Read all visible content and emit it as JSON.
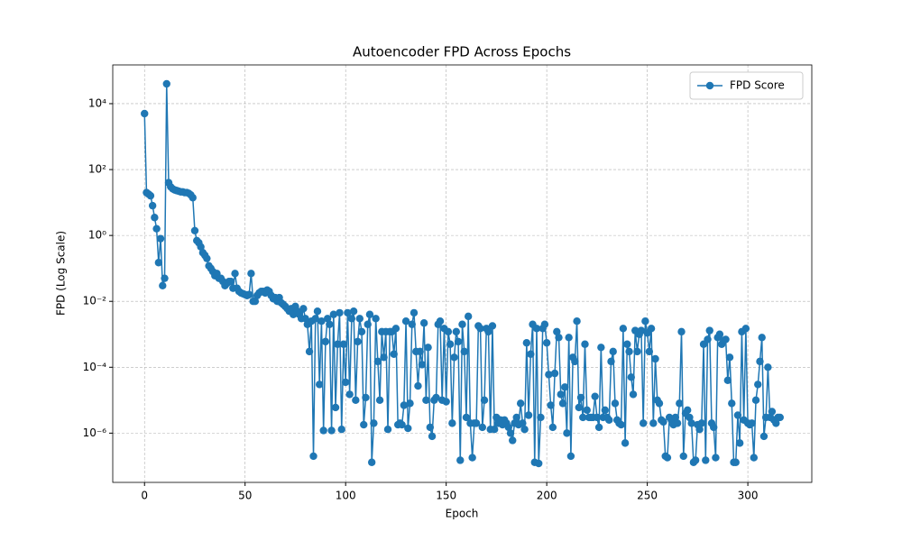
{
  "chart_data": {
    "type": "line",
    "title": "Autoencoder FPD Across Epochs",
    "xlabel": "Epoch",
    "ylabel": "FPD (Log Scale)",
    "log_y": true,
    "grid": true,
    "legend_loc": "upper right",
    "xlim": [
      -15.8,
      331.8
    ],
    "xticks": [
      0,
      50,
      100,
      150,
      200,
      250,
      300
    ],
    "ylim": [
      3.2e-08,
      150000
    ],
    "yticks": [
      {
        "value": 1e-06,
        "label": "10⁻⁶"
      },
      {
        "value": 0.0001,
        "label": "10⁻⁴"
      },
      {
        "value": 0.01,
        "label": "10⁻²"
      },
      {
        "value": 1,
        "label": "10⁰"
      },
      {
        "value": 100,
        "label": "10²"
      },
      {
        "value": 10000,
        "label": "10⁴"
      }
    ],
    "series": [
      {
        "name": "FPD Score",
        "color": "#1f77b4",
        "x": [
          0,
          1,
          2,
          3,
          4,
          5,
          6,
          7,
          8,
          9,
          10,
          11,
          12,
          13,
          14,
          15,
          16,
          17,
          18,
          19,
          20,
          21,
          22,
          23,
          24,
          25,
          26,
          27,
          28,
          29,
          30,
          31,
          32,
          33,
          34,
          35,
          36,
          37,
          38,
          39,
          40,
          41,
          42,
          43,
          44,
          45,
          46,
          47,
          48,
          49,
          50,
          51,
          52,
          53,
          54,
          55,
          56,
          57,
          58,
          59,
          60,
          61,
          62,
          63,
          64,
          65,
          66,
          67,
          68,
          69,
          70,
          71,
          72,
          73,
          74,
          75,
          76,
          77,
          78,
          79,
          80,
          81,
          82,
          83,
          84,
          85,
          86,
          87,
          88,
          89,
          90,
          91,
          92,
          93,
          94,
          95,
          96,
          97,
          98,
          99,
          100,
          101,
          102,
          103,
          104,
          105,
          106,
          107,
          108,
          109,
          110,
          111,
          112,
          113,
          114,
          115,
          116,
          117,
          118,
          119,
          120,
          121,
          122,
          123,
          124,
          125,
          126,
          127,
          128,
          129,
          130,
          131,
          132,
          133,
          134,
          135,
          136,
          137,
          138,
          139,
          140,
          141,
          142,
          143,
          144,
          145,
          146,
          147,
          148,
          149,
          150,
          151,
          152,
          153,
          154,
          155,
          156,
          157,
          158,
          159,
          160,
          161,
          162,
          163,
          164,
          165,
          166,
          167,
          168,
          169,
          170,
          171,
          172,
          173,
          174,
          175,
          176,
          177,
          178,
          179,
          180,
          181,
          182,
          183,
          184,
          185,
          186,
          187,
          188,
          189,
          190,
          191,
          192,
          193,
          194,
          195,
          196,
          197,
          198,
          199,
          200,
          201,
          202,
          203,
          204,
          205,
          206,
          207,
          208,
          209,
          210,
          211,
          212,
          213,
          214,
          215,
          216,
          217,
          218,
          219,
          220,
          221,
          222,
          223,
          224,
          225,
          226,
          227,
          228,
          229,
          230,
          231,
          232,
          233,
          234,
          235,
          236,
          237,
          238,
          239,
          240,
          241,
          242,
          243,
          244,
          245,
          246,
          247,
          248,
          249,
          250,
          251,
          252,
          253,
          254,
          255,
          256,
          257,
          258,
          259,
          260,
          261,
          262,
          263,
          264,
          265,
          266,
          267,
          268,
          269,
          270,
          271,
          272,
          273,
          274,
          275,
          276,
          277,
          278,
          279,
          280,
          281,
          282,
          283,
          284,
          285,
          286,
          287,
          288,
          289,
          290,
          291,
          292,
          293,
          294,
          295,
          296,
          297,
          298,
          299,
          300,
          301,
          302,
          303,
          304,
          305,
          306,
          307,
          308,
          309,
          310,
          311,
          312,
          313,
          314,
          315,
          316
        ],
        "values": [
          5000,
          20,
          18,
          16,
          8,
          3.5,
          1.6,
          0.15,
          0.8,
          0.03,
          0.05,
          40000,
          40,
          30,
          26,
          24,
          23,
          22,
          21,
          21,
          20,
          20,
          19,
          17,
          14,
          1.4,
          0.7,
          0.6,
          0.45,
          0.3,
          0.25,
          0.2,
          0.12,
          0.1,
          0.08,
          0.06,
          0.07,
          0.05,
          0.05,
          0.04,
          0.03,
          0.035,
          0.04,
          0.04,
          0.025,
          0.07,
          0.025,
          0.02,
          0.018,
          0.017,
          0.016,
          0.015,
          0.016,
          0.07,
          0.01,
          0.01,
          0.015,
          0.018,
          0.02,
          0.02,
          0.018,
          0.022,
          0.02,
          0.015,
          0.012,
          0.013,
          0.01,
          0.013,
          0.009,
          0.008,
          0.007,
          0.006,
          0.005,
          0.006,
          0.004,
          0.007,
          0.005,
          0.004,
          0.003,
          0.006,
          0.003,
          0.002,
          0.0003,
          0.0025,
          2e-07,
          0.003,
          0.005,
          3e-05,
          0.0025,
          1.2e-06,
          0.0006,
          0.003,
          0.002,
          1.2e-06,
          0.004,
          6e-06,
          0.0005,
          0.0045,
          1.3e-06,
          0.0005,
          3.5e-05,
          0.0045,
          1.5e-05,
          0.003,
          0.005,
          1e-05,
          0.0006,
          0.003,
          0.0012,
          1.8e-06,
          1.2e-05,
          0.002,
          0.004,
          1.3e-07,
          2e-06,
          0.003,
          0.00015,
          1e-05,
          0.0012,
          0.0002,
          0.0012,
          1.3e-06,
          0.0012,
          0.0012,
          0.00025,
          0.0015,
          1.8e-06,
          2e-06,
          1.8e-06,
          7e-06,
          0.0025,
          1.4e-06,
          8e-06,
          0.002,
          0.0045,
          0.0003,
          2.7e-05,
          0.0003,
          0.00012,
          0.0022,
          1e-05,
          0.0004,
          1.5e-06,
          8e-07,
          1e-05,
          1.2e-05,
          0.002,
          0.0025,
          1e-05,
          0.0015,
          9e-06,
          0.0012,
          0.0005,
          2e-06,
          0.0002,
          0.0012,
          0.0006,
          1.5e-07,
          0.002,
          0.0003,
          3e-06,
          0.0035,
          2e-06,
          1.8e-07,
          2e-06,
          2e-06,
          0.0018,
          0.0015,
          1.5e-06,
          1e-05,
          0.0015,
          0.0012,
          1.3e-06,
          0.0018,
          1.3e-06,
          3e-06,
          2e-06,
          2.5e-06,
          1.8e-06,
          2.5e-06,
          2e-06,
          1.5e-06,
          1e-06,
          6e-07,
          2e-06,
          3e-06,
          1.8e-06,
          8e-06,
          2e-06,
          1.3e-06,
          0.00055,
          3.5e-06,
          0.00025,
          0.002,
          1.3e-07,
          0.0015,
          1.2e-07,
          3e-06,
          0.0015,
          0.002,
          0.00055,
          6e-05,
          7e-06,
          1.5e-06,
          6.5e-05,
          0.0012,
          0.0008,
          1.5e-05,
          8e-06,
          2.5e-05,
          1e-06,
          0.0008,
          2e-07,
          0.0002,
          0.00015,
          0.0025,
          6e-06,
          1.2e-05,
          3e-06,
          0.0005,
          5e-06,
          3e-06,
          3e-06,
          3e-06,
          1.3e-05,
          3e-06,
          1.5e-06,
          0.0004,
          3e-06,
          5e-06,
          3e-06,
          2.5e-06,
          0.00015,
          0.0003,
          8e-06,
          2.5e-06,
          2e-06,
          1.8e-06,
          0.0015,
          5e-07,
          0.0005,
          0.0003,
          5e-05,
          1.5e-05,
          0.0013,
          0.0003,
          0.001,
          0.0013,
          2e-06,
          0.0025,
          0.0011,
          0.0003,
          0.0015,
          2e-06,
          0.00018,
          1e-05,
          8e-06,
          2.5e-06,
          2.2e-06,
          2e-07,
          1.8e-07,
          3e-06,
          2.5e-06,
          1.8e-06,
          3e-06,
          2e-06,
          8e-06,
          0.0012,
          2e-07,
          4e-06,
          5e-06,
          3e-06,
          2e-06,
          1.3e-07,
          1.5e-07,
          1.8e-06,
          1.3e-06,
          2e-06,
          0.0005,
          1.5e-07,
          0.0007,
          0.0013,
          2e-06,
          1.5e-06,
          1.8e-07,
          0.0008,
          0.001,
          0.0005,
          0.00065,
          0.0007,
          4e-05,
          0.0002,
          8e-06,
          1.3e-07,
          1.3e-07,
          3.5e-06,
          5e-07,
          0.0012,
          2.5e-06,
          0.0015,
          2e-06,
          1.8e-06,
          2e-06,
          1.8e-07,
          1e-05,
          3e-05,
          0.00015,
          0.0008,
          8e-07,
          3e-06,
          0.0001,
          3e-06,
          4.5e-06,
          2.5e-06,
          2e-06,
          3e-06,
          3e-06
        ]
      }
    ]
  }
}
